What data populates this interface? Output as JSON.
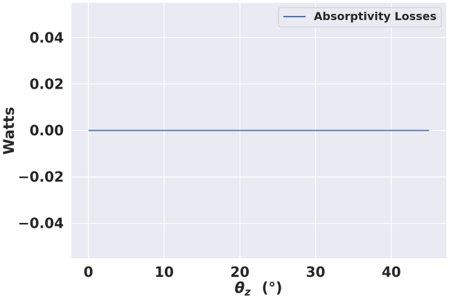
{
  "chart_data": {
    "type": "line",
    "title": "",
    "xlabel": {
      "symbol": "θ",
      "subscript": "z",
      "unit": "(°)"
    },
    "ylabel": "Watts",
    "xlim": [
      -2.25,
      47.25
    ],
    "ylim": [
      -0.055,
      0.055
    ],
    "xticks": [
      0,
      10,
      20,
      30,
      40
    ],
    "xtick_labels": [
      "0",
      "10",
      "20",
      "30",
      "40"
    ],
    "yticks": [
      -0.04,
      -0.02,
      0.0,
      0.02,
      0.04
    ],
    "ytick_labels": [
      "−0.04",
      "−0.02",
      "0.00",
      "0.02",
      "0.04"
    ],
    "grid": true,
    "legend_position": "top-right",
    "series": [
      {
        "name": "Absorptivity Losses",
        "color": "#4c72b0",
        "x": [
          0,
          5,
          10,
          15,
          20,
          25,
          30,
          35,
          40,
          45
        ],
        "y": [
          0,
          0,
          0,
          0,
          0,
          0,
          0,
          0,
          0,
          0
        ]
      }
    ]
  },
  "colors": {
    "plot_background": "#eaeaf2",
    "grid": "#ffffff",
    "text": "#262626"
  }
}
